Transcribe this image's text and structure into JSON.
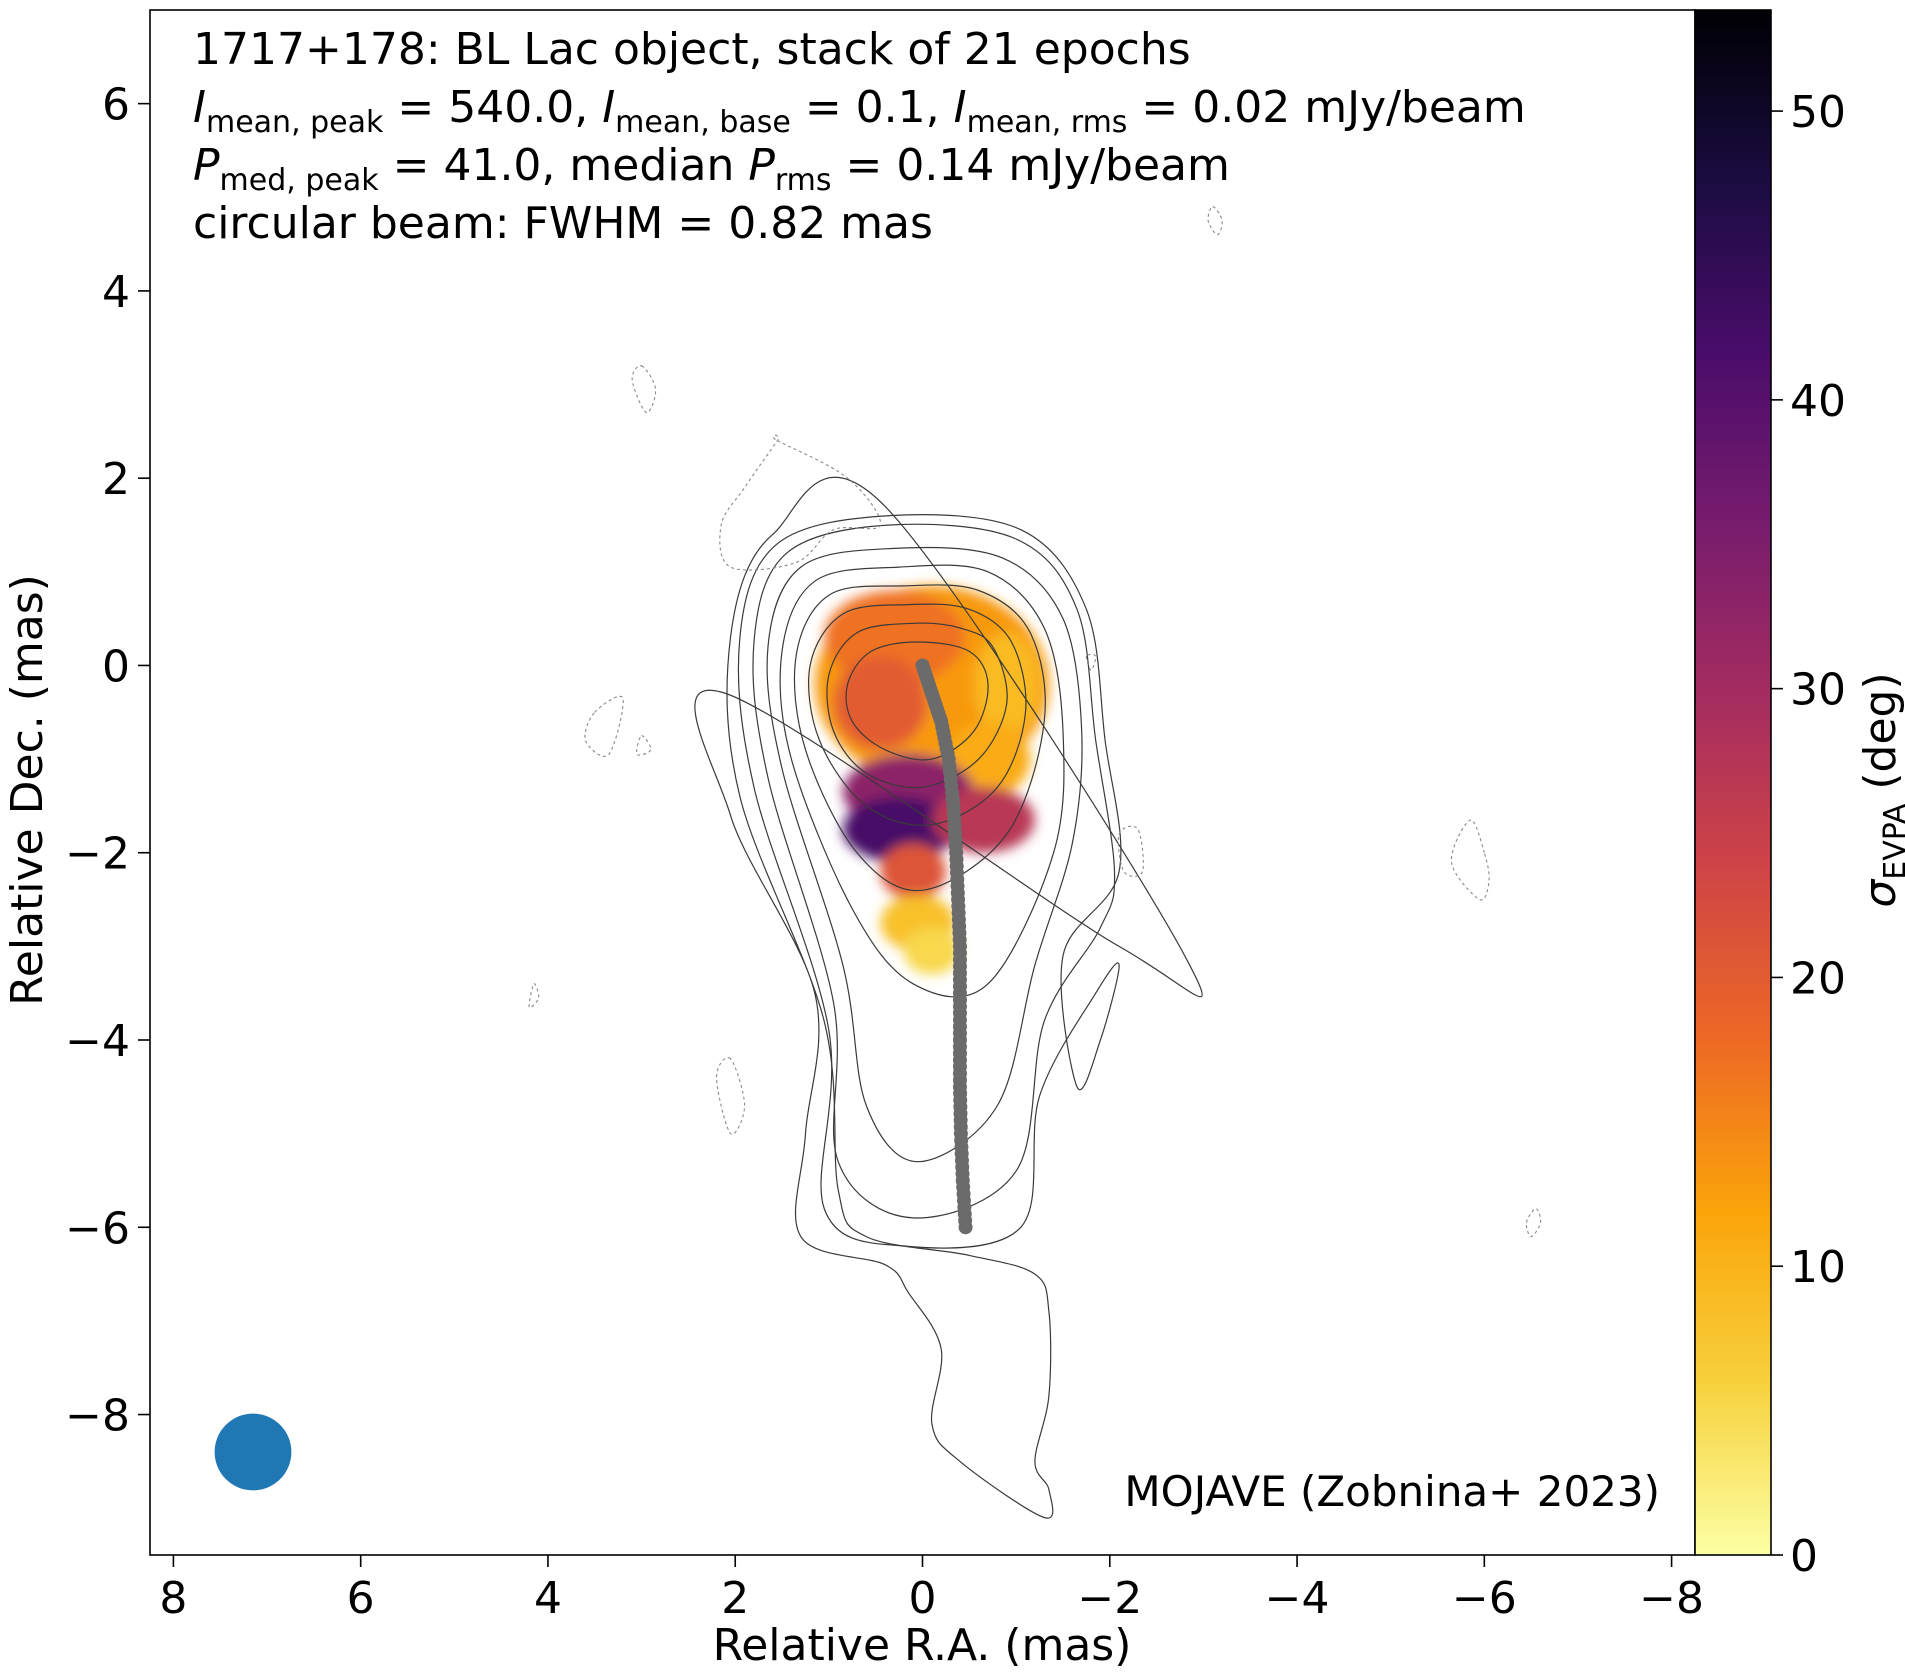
{
  "chart_data": {
    "type": "heatmap",
    "annotation": {
      "line1": "1717+178: BL Lac object, stack of 21 epochs",
      "line2": {
        "i1": "I",
        "s1": "mean, peak",
        "t1": " = 540.0, ",
        "i2": "I",
        "s2": "mean, base",
        "t2": " = 0.1, ",
        "i3": "I",
        "s3": "mean, rms",
        "t3": " = 0.02 mJy/beam"
      },
      "line3": {
        "i1": "P",
        "s1": "med, peak",
        "t1": " = 41.0, median ",
        "i2": "P",
        "s2": "rms",
        "t2": " = 0.14 mJy/beam"
      },
      "line4": "circular beam: FWHM = 0.82 mas"
    },
    "credit": "MOJAVE (Zobnina+ 2023)",
    "xlabel": "Relative R.A. (mas)",
    "ylabel": "Relative Dec. (mas)",
    "colorbar_label": {
      "symbol": "σ",
      "sub": "EVPA",
      "unit": " (deg)"
    },
    "xlim": [
      8.25,
      -8.25
    ],
    "ylim": [
      -9.5,
      7.0
    ],
    "xticks": [
      8,
      6,
      4,
      2,
      0,
      -2,
      -4,
      -6,
      -8
    ],
    "yticks": [
      6,
      4,
      2,
      0,
      -2,
      -4,
      -6,
      -8
    ],
    "colorbar_range": [
      0,
      53.5
    ],
    "colorbar_ticks": [
      0,
      10,
      20,
      30,
      40,
      50
    ],
    "colormap": "inferno_r",
    "colormap_stops": [
      "#fcffa4",
      "#f7d13d",
      "#fba40a",
      "#ed6925",
      "#cf4446",
      "#a52c60",
      "#781c6d",
      "#4a0c6b",
      "#1b0c41",
      "#000004"
    ],
    "beam": {
      "ra": 7.15,
      "dec": -8.4,
      "fwhm_mas": 0.82,
      "color": "#1f77b4"
    },
    "ridgeline": {
      "color": "#6b6b6b",
      "points": [
        [
          0.0,
          0.0
        ],
        [
          -0.1,
          -0.3
        ],
        [
          -0.2,
          -0.6
        ],
        [
          -0.28,
          -1.0
        ],
        [
          -0.33,
          -1.5
        ],
        [
          -0.36,
          -2.0
        ],
        [
          -0.38,
          -2.5
        ],
        [
          -0.4,
          -3.0
        ],
        [
          -0.4,
          -3.5
        ],
        [
          -0.4,
          -4.0
        ],
        [
          -0.4,
          -4.5
        ],
        [
          -0.41,
          -5.0
        ],
        [
          -0.43,
          -5.5
        ],
        [
          -0.46,
          -6.0
        ]
      ]
    },
    "polarization_regions": [
      {
        "ra": -0.1,
        "dec": -0.2,
        "rx": 1.25,
        "ry": 1.05,
        "value": 13
      },
      {
        "ra": 0.3,
        "dec": 0.3,
        "rx": 0.75,
        "ry": 0.5,
        "value": 17
      },
      {
        "ra": 0.45,
        "dec": -0.4,
        "rx": 0.5,
        "ry": 0.5,
        "value": 20
      },
      {
        "ra": -0.9,
        "dec": -0.2,
        "rx": 0.35,
        "ry": 0.55,
        "value": 9
      },
      {
        "ra": -0.7,
        "dec": -1.0,
        "rx": 0.45,
        "ry": 0.4,
        "value": 11
      },
      {
        "ra": 0.15,
        "dec": -1.35,
        "rx": 0.7,
        "ry": 0.4,
        "value": 33
      },
      {
        "ra": 0.25,
        "dec": -1.75,
        "rx": 0.6,
        "ry": 0.35,
        "value": 42
      },
      {
        "ra": -0.65,
        "dec": -1.65,
        "rx": 0.55,
        "ry": 0.35,
        "value": 27
      },
      {
        "ra": 0.1,
        "dec": -2.2,
        "rx": 0.35,
        "ry": 0.3,
        "value": 21
      },
      {
        "ra": 0.05,
        "dec": -2.75,
        "rx": 0.4,
        "ry": 0.3,
        "value": 8
      },
      {
        "ra": -0.1,
        "dec": -3.05,
        "rx": 0.3,
        "ry": 0.25,
        "value": 5
      }
    ],
    "contours": [
      [
        [
          0.05,
          0.25
        ],
        [
          0.55,
          0.15
        ],
        [
          0.8,
          -0.2
        ],
        [
          0.75,
          -0.6
        ],
        [
          0.4,
          -0.9
        ],
        [
          -0.1,
          -1.0
        ],
        [
          -0.55,
          -0.7
        ],
        [
          -0.7,
          -0.2
        ],
        [
          -0.5,
          0.15
        ]
      ],
      [
        [
          0.1,
          0.45
        ],
        [
          0.7,
          0.35
        ],
        [
          1.0,
          -0.1
        ],
        [
          0.95,
          -0.7
        ],
        [
          0.6,
          -1.15
        ],
        [
          0.0,
          -1.3
        ],
        [
          -0.6,
          -1.0
        ],
        [
          -0.9,
          -0.4
        ],
        [
          -0.75,
          0.2
        ],
        [
          -0.4,
          0.4
        ]
      ],
      [
        [
          0.15,
          0.65
        ],
        [
          0.85,
          0.55
        ],
        [
          1.2,
          0.0
        ],
        [
          1.1,
          -0.8
        ],
        [
          0.6,
          -1.5
        ],
        [
          -0.1,
          -1.7
        ],
        [
          -0.8,
          -1.3
        ],
        [
          -1.1,
          -0.5
        ],
        [
          -0.95,
          0.25
        ],
        [
          -0.5,
          0.6
        ]
      ],
      [
        [
          0.2,
          0.85
        ],
        [
          1.0,
          0.75
        ],
        [
          1.35,
          0.1
        ],
        [
          1.25,
          -0.9
        ],
        [
          0.7,
          -2.0
        ],
        [
          0.0,
          -2.4
        ],
        [
          -0.9,
          -1.8
        ],
        [
          -1.3,
          -0.6
        ],
        [
          -1.15,
          0.35
        ],
        [
          -0.6,
          0.8
        ]
      ],
      [
        [
          0.25,
          1.05
        ],
        [
          1.15,
          0.9
        ],
        [
          1.5,
          0.15
        ],
        [
          1.4,
          -1.0
        ],
        [
          0.75,
          -2.6
        ],
        [
          0.1,
          -3.4
        ],
        [
          -0.7,
          -3.4
        ],
        [
          -1.4,
          -2.0
        ],
        [
          -1.5,
          -0.7
        ],
        [
          -1.3,
          0.4
        ],
        [
          -0.7,
          1.0
        ]
      ],
      [
        [
          0.3,
          1.25
        ],
        [
          1.3,
          1.05
        ],
        [
          1.65,
          0.2
        ],
        [
          1.5,
          -1.1
        ],
        [
          0.85,
          -3.2
        ],
        [
          0.6,
          -4.7
        ],
        [
          0.05,
          -5.3
        ],
        [
          -0.8,
          -4.7
        ],
        [
          -1.2,
          -3.2
        ],
        [
          -1.6,
          -1.9
        ],
        [
          -1.7,
          -0.7
        ],
        [
          -1.5,
          0.5
        ],
        [
          -0.85,
          1.15
        ]
      ],
      [
        [
          0.35,
          1.5
        ],
        [
          1.45,
          1.2
        ],
        [
          1.8,
          0.25
        ],
        [
          1.65,
          -1.2
        ],
        [
          0.95,
          -3.6
        ],
        [
          0.9,
          -5.3
        ],
        [
          0.1,
          -5.9
        ],
        [
          -1.0,
          -5.4
        ],
        [
          -1.3,
          -3.8
        ],
        [
          -1.9,
          -2.8
        ],
        [
          -2.05,
          -2.2
        ],
        [
          -1.85,
          -0.8
        ],
        [
          -1.65,
          0.6
        ],
        [
          -1.0,
          1.35
        ]
      ],
      [
        [
          0.35,
          1.6
        ],
        [
          1.55,
          1.3
        ],
        [
          1.95,
          0.3
        ],
        [
          1.8,
          -1.3
        ],
        [
          1.0,
          -3.9
        ],
        [
          1.05,
          -5.8
        ],
        [
          0.2,
          -6.2
        ],
        [
          -1.05,
          -6.0
        ],
        [
          -1.25,
          -4.6
        ],
        [
          -1.85,
          -3.5
        ],
        [
          -2.1,
          -3.2
        ],
        [
          -1.9,
          -4.0
        ],
        [
          -1.65,
          -4.5
        ],
        [
          -1.5,
          -3.1
        ],
        [
          -2.1,
          -2.2
        ],
        [
          -1.95,
          -0.8
        ],
        [
          -1.75,
          0.6
        ],
        [
          -1.05,
          1.45
        ]
      ],
      [
        [
          0.4,
          1.7
        ],
        [
          1.6,
          1.4
        ],
        [
          2.05,
          0.3
        ],
        [
          1.95,
          -1.4
        ],
        [
          1.05,
          -3.8
        ],
        [
          0.9,
          -5.6
        ],
        [
          0.6,
          -6.1
        ],
        [
          -0.5,
          -6.3
        ],
        [
          -1.2,
          -6.5
        ],
        [
          -1.35,
          -6.9
        ],
        [
          -1.35,
          -7.8
        ],
        [
          -1.2,
          -8.5
        ],
        [
          -1.35,
          -8.8
        ],
        [
          -1.3,
          -9.1
        ],
        [
          -0.4,
          -8.5
        ],
        [
          -0.1,
          -8.1
        ],
        [
          -0.2,
          -7.3
        ],
        [
          0.15,
          -6.7
        ],
        [
          0.4,
          -6.4
        ],
        [
          1.3,
          -6.1
        ],
        [
          1.25,
          -5.0
        ],
        [
          1.15,
          -3.5
        ],
        [
          2.05,
          -1.6
        ],
        [
          2.1,
          -0.3
        ],
        [
          -2.1,
          -3.0
        ],
        [
          -2.8,
          -3.1
        ]
      ]
    ],
    "neg_contours": [
      [
        [
          1.55,
          2.4
        ],
        [
          0.8,
          2.0
        ],
        [
          0.45,
          1.5
        ],
        [
          0.95,
          1.45
        ],
        [
          1.35,
          1.1
        ],
        [
          2.05,
          1.05
        ],
        [
          2.15,
          1.5
        ],
        [
          1.9,
          1.9
        ],
        [
          1.55,
          2.4
        ]
      ],
      [
        [
          3.5,
          -0.5
        ],
        [
          3.2,
          -0.35
        ],
        [
          3.35,
          -0.95
        ],
        [
          3.6,
          -0.8
        ]
      ],
      [
        [
          3.0,
          3.2
        ],
        [
          2.85,
          2.95
        ],
        [
          2.95,
          2.7
        ],
        [
          3.1,
          3.05
        ]
      ],
      [
        [
          -2.1,
          -1.8
        ],
        [
          -2.3,
          -1.75
        ],
        [
          -2.35,
          -2.2
        ],
        [
          -2.15,
          -2.2
        ]
      ],
      [
        [
          2.05,
          -4.2
        ],
        [
          2.2,
          -4.4
        ],
        [
          2.05,
          -5.0
        ],
        [
          1.9,
          -4.7
        ]
      ],
      [
        [
          -3.1,
          4.9
        ],
        [
          -3.2,
          4.75
        ],
        [
          -3.15,
          4.6
        ],
        [
          -3.05,
          4.75
        ]
      ],
      [
        [
          -6.0,
          -2.0
        ],
        [
          -5.85,
          -1.65
        ],
        [
          -5.65,
          -2.1
        ],
        [
          -5.95,
          -2.5
        ],
        [
          -6.05,
          -2.3
        ]
      ],
      [
        [
          -6.45,
          -5.95
        ],
        [
          -6.55,
          -5.8
        ],
        [
          -6.6,
          -5.95
        ],
        [
          -6.5,
          -6.1
        ]
      ],
      [
        [
          4.15,
          -3.4
        ],
        [
          4.1,
          -3.55
        ],
        [
          4.2,
          -3.65
        ]
      ],
      [
        [
          3.0,
          -0.75
        ],
        [
          2.9,
          -0.9
        ],
        [
          3.05,
          -0.95
        ]
      ],
      [
        [
          -1.75,
          0.1
        ],
        [
          -1.8,
          -0.05
        ],
        [
          -1.85,
          0.1
        ]
      ]
    ]
  }
}
